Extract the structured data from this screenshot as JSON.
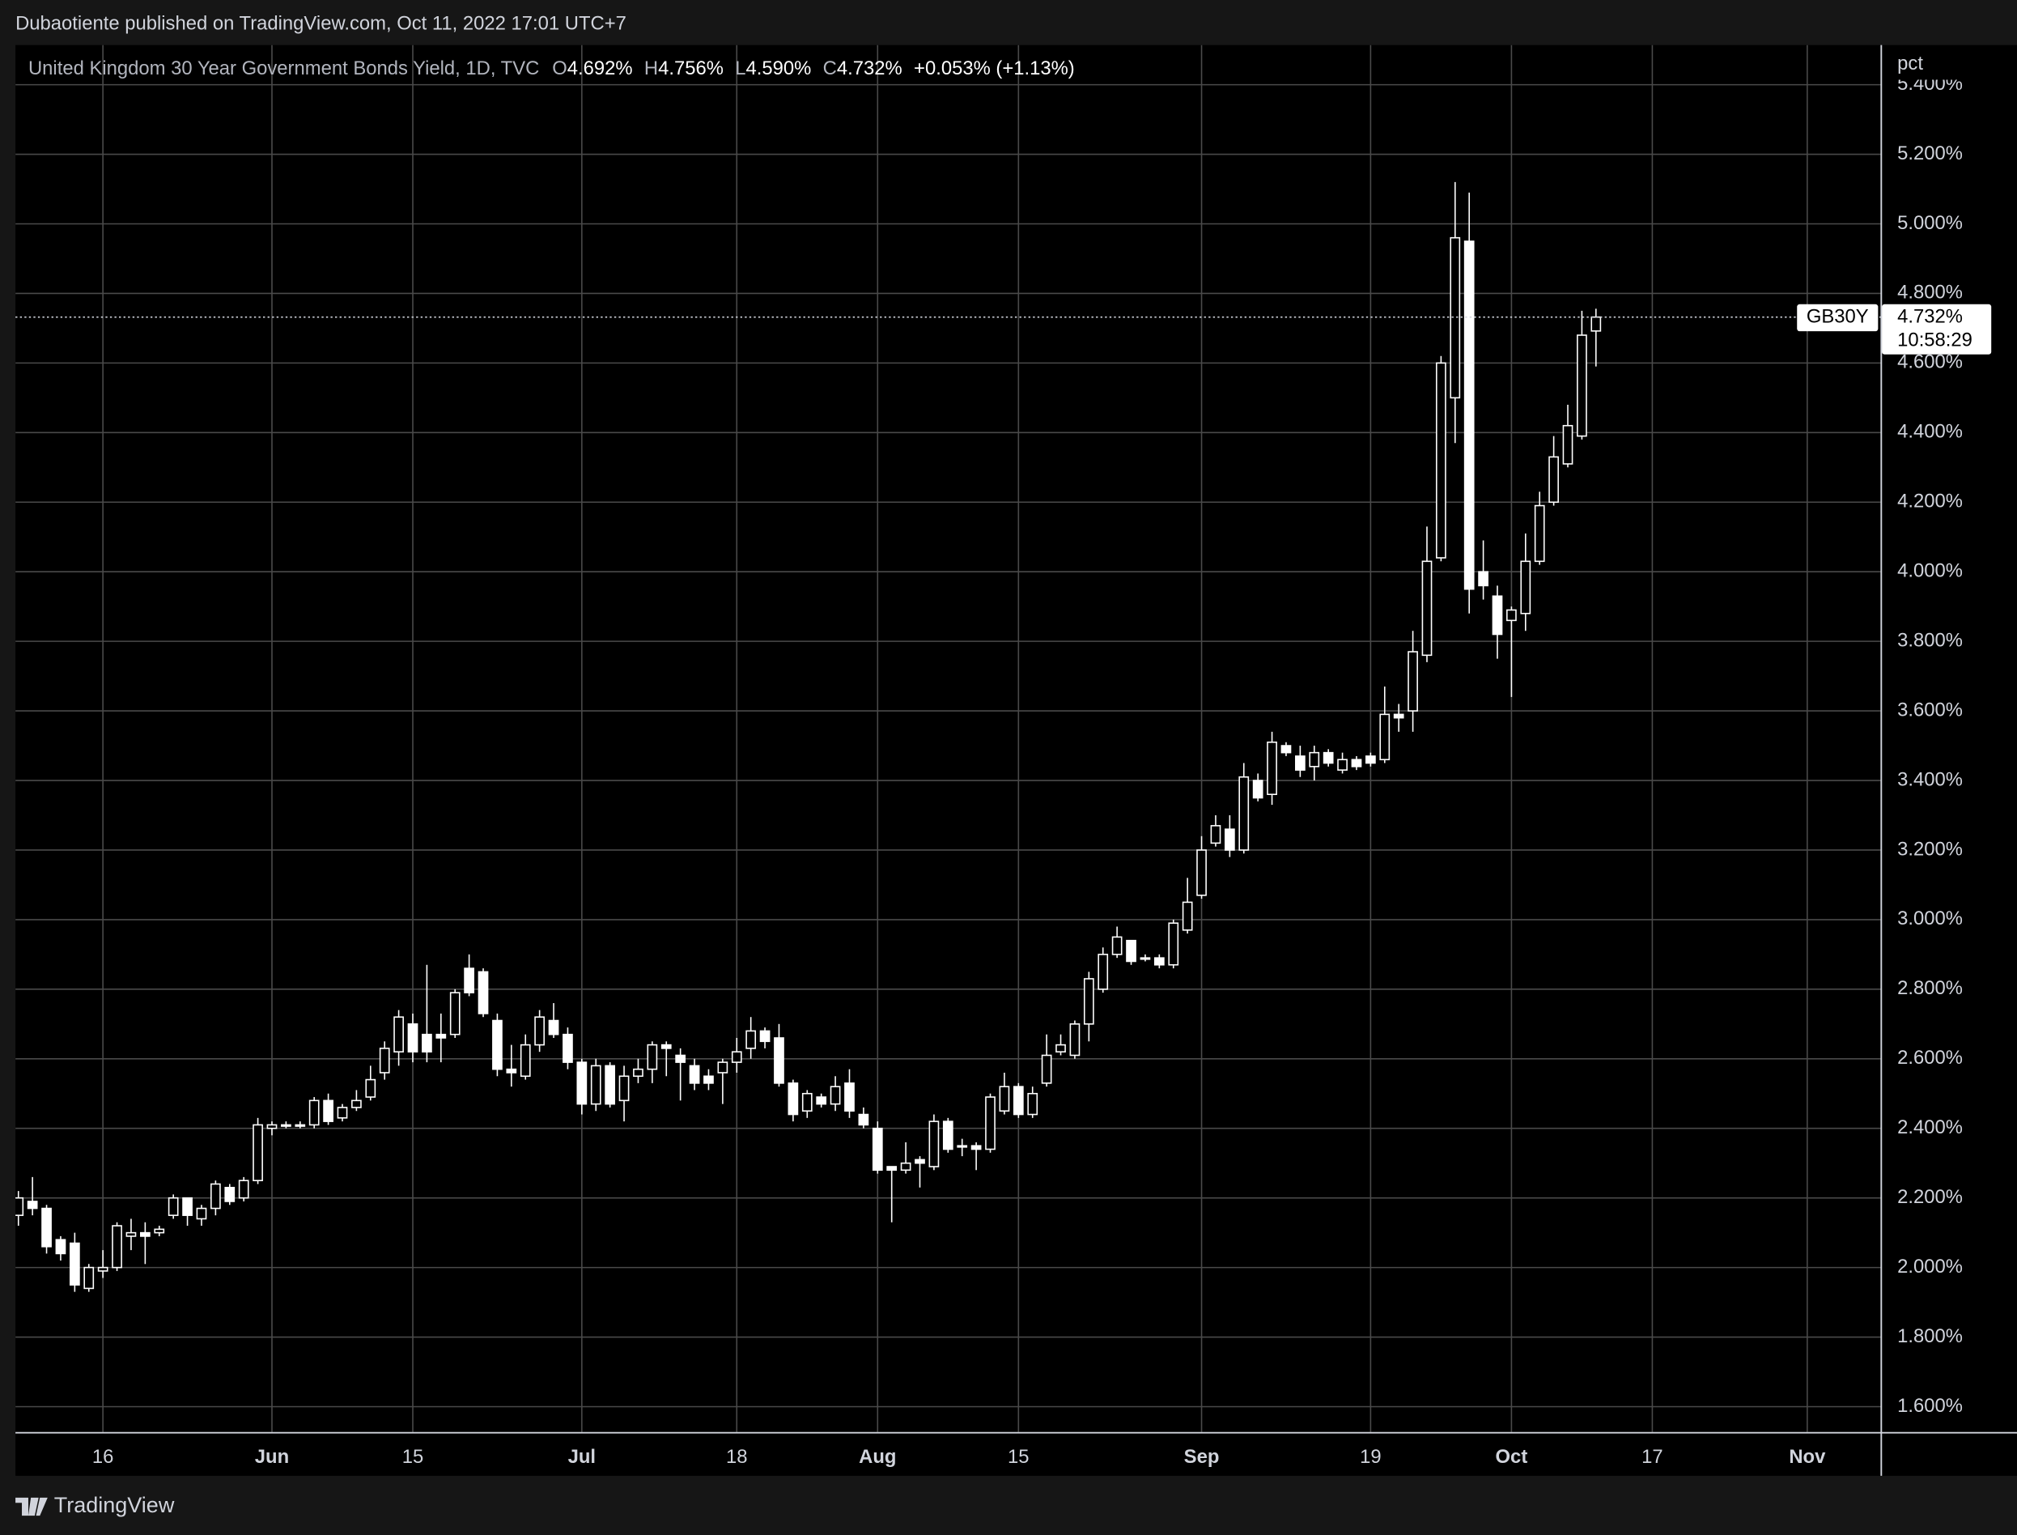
{
  "chart_data": {
    "type": "candlestick",
    "source": "Dubaotiente published on TradingView.com, Oct 11, 2022 17:01 UTC+7",
    "title": "United Kingdom 30 Year Government Bonds Yield, 1D, TVC",
    "ohlc_legend": [
      {
        "label": "O",
        "value": "4.692%"
      },
      {
        "label": "H",
        "value": "4.756%"
      },
      {
        "label": "L",
        "value": "4.590%"
      },
      {
        "label": "C",
        "value": "4.732%"
      }
    ],
    "change": "+0.053% (+1.13%)",
    "y_unit": "pct",
    "symbol": "GB30Y",
    "last_price_label": "4.732%",
    "countdown": "10:58:29",
    "branding": "TradingView",
    "color": "#ffffff",
    "background": "#000000",
    "grid": true,
    "categories": [
      null,
      null,
      null,
      null,
      null,
      null,
      "16",
      null,
      null,
      null,
      null,
      null,
      null,
      null,
      null,
      null,
      null,
      null,
      "Jun",
      null,
      null,
      null,
      null,
      null,
      null,
      null,
      null,
      null,
      "15",
      null,
      null,
      null,
      null,
      null,
      null,
      null,
      null,
      null,
      null,
      null,
      "Jul",
      null,
      null,
      null,
      null,
      null,
      null,
      null,
      null,
      null,
      null,
      "18",
      null,
      null,
      null,
      null,
      null,
      null,
      null,
      null,
      null,
      "Aug",
      null,
      null,
      null,
      null,
      null,
      null,
      null,
      null,
      null,
      "15",
      null,
      null,
      null,
      null,
      null,
      null,
      null,
      null,
      null,
      null,
      null,
      null,
      "Sep",
      null,
      null,
      null,
      null,
      null,
      null,
      null,
      null,
      null,
      null,
      null,
      "19",
      null,
      null,
      null,
      null,
      null,
      null,
      null,
      null,
      null,
      "Oct",
      null,
      null,
      null,
      null,
      null,
      null,
      null,
      null,
      null,
      "17",
      null,
      null,
      null,
      null,
      null,
      null,
      null,
      null,
      null,
      null,
      "Nov",
      null,
      null,
      null,
      null,
      null
    ],
    "open": [
      2.15,
      2.19,
      2.17,
      2.08,
      2.07,
      1.94,
      1.99,
      2.0,
      2.09,
      2.1,
      2.1,
      2.15,
      2.2,
      2.14,
      2.17,
      2.23,
      2.2,
      2.25,
      2.4,
      2.41,
      2.41,
      2.41,
      2.48,
      2.43,
      2.46,
      2.49,
      2.56,
      2.62,
      2.7,
      2.67,
      2.67,
      2.67,
      2.86,
      2.85,
      2.71,
      2.57,
      2.55,
      2.64,
      2.71,
      2.67,
      2.59,
      2.47,
      2.58,
      2.48,
      2.55,
      2.57,
      2.64,
      2.61,
      2.58,
      2.55,
      2.56,
      2.59,
      2.63,
      2.68,
      2.66,
      2.53,
      2.45,
      2.49,
      2.47,
      2.53,
      2.44,
      2.4,
      2.29,
      2.28,
      2.31,
      2.29,
      2.42,
      2.35,
      2.35,
      2.34,
      2.45,
      2.52,
      2.44,
      2.53,
      2.62,
      2.61,
      2.7,
      2.8,
      2.9,
      2.94,
      2.89,
      2.89,
      2.87,
      2.97,
      3.07,
      3.22,
      3.26,
      3.2,
      3.4,
      3.36,
      3.5,
      3.47,
      3.44,
      3.48,
      3.43,
      3.46,
      3.47,
      3.46,
      3.59,
      3.6,
      3.76,
      4.04,
      4.5,
      4.95,
      4.0,
      3.93,
      3.86,
      3.88,
      4.03,
      4.2,
      4.31,
      4.39,
      4.692,
      null,
      null,
      null,
      null,
      null,
      null,
      null,
      null,
      null,
      null,
      null,
      null,
      null,
      null,
      null,
      null,
      null,
      null,
      null,
      null
    ],
    "high": [
      2.22,
      2.26,
      2.18,
      2.09,
      2.1,
      2.01,
      2.05,
      2.13,
      2.14,
      2.13,
      2.12,
      2.21,
      2.2,
      2.18,
      2.25,
      2.24,
      2.26,
      2.43,
      2.42,
      2.42,
      2.42,
      2.49,
      2.5,
      2.47,
      2.51,
      2.58,
      2.65,
      2.74,
      2.73,
      2.87,
      2.73,
      2.8,
      2.9,
      2.86,
      2.73,
      2.64,
      2.67,
      2.74,
      2.76,
      2.69,
      2.6,
      2.6,
      2.59,
      2.58,
      2.6,
      2.65,
      2.65,
      2.63,
      2.6,
      2.57,
      2.6,
      2.66,
      2.72,
      2.69,
      2.7,
      2.54,
      2.51,
      2.5,
      2.55,
      2.57,
      2.46,
      2.42,
      2.29,
      2.36,
      2.32,
      2.44,
      2.43,
      2.37,
      2.36,
      2.5,
      2.56,
      2.53,
      2.52,
      2.67,
      2.67,
      2.71,
      2.85,
      2.92,
      2.98,
      2.94,
      2.9,
      2.9,
      3.0,
      3.12,
      3.24,
      3.3,
      3.3,
      3.45,
      3.42,
      3.54,
      3.51,
      3.5,
      3.5,
      3.49,
      3.48,
      3.47,
      3.48,
      3.67,
      3.62,
      3.83,
      4.13,
      4.62,
      5.12,
      5.09,
      4.09,
      3.96,
      3.9,
      4.11,
      4.23,
      4.39,
      4.48,
      4.75,
      4.756,
      null,
      null,
      null,
      null,
      null,
      null,
      null,
      null,
      null,
      null,
      null,
      null,
      null,
      null,
      null,
      null,
      null,
      null,
      null,
      null
    ],
    "low": [
      2.12,
      2.15,
      2.04,
      2.02,
      1.93,
      1.93,
      1.97,
      1.99,
      2.05,
      2.01,
      2.09,
      2.14,
      2.12,
      2.12,
      2.15,
      2.18,
      2.19,
      2.24,
      2.38,
      2.4,
      2.4,
      2.4,
      2.41,
      2.42,
      2.45,
      2.48,
      2.54,
      2.58,
      2.59,
      2.59,
      2.59,
      2.66,
      2.78,
      2.72,
      2.55,
      2.52,
      2.54,
      2.62,
      2.66,
      2.57,
      2.44,
      2.45,
      2.46,
      2.42,
      2.53,
      2.53,
      2.55,
      2.48,
      2.51,
      2.51,
      2.47,
      2.56,
      2.6,
      2.63,
      2.52,
      2.42,
      2.43,
      2.46,
      2.45,
      2.43,
      2.4,
      2.27,
      2.13,
      2.27,
      2.23,
      2.28,
      2.33,
      2.32,
      2.28,
      2.33,
      2.44,
      2.43,
      2.43,
      2.52,
      2.61,
      2.6,
      2.65,
      2.79,
      2.89,
      2.87,
      2.88,
      2.86,
      2.86,
      2.96,
      3.06,
      3.21,
      3.18,
      3.19,
      3.34,
      3.33,
      3.47,
      3.41,
      3.4,
      3.44,
      3.42,
      3.43,
      3.44,
      3.45,
      3.54,
      3.54,
      3.74,
      4.03,
      4.37,
      3.88,
      3.92,
      3.75,
      3.64,
      3.83,
      4.02,
      4.19,
      4.3,
      4.38,
      4.59,
      null,
      null,
      null,
      null,
      null,
      null,
      null,
      null,
      null,
      null,
      null,
      null,
      null,
      null,
      null,
      null,
      null,
      null,
      null,
      null
    ],
    "close": [
      2.2,
      2.17,
      2.06,
      2.04,
      1.95,
      2.0,
      2.0,
      2.12,
      2.1,
      2.09,
      2.11,
      2.2,
      2.15,
      2.17,
      2.24,
      2.19,
      2.25,
      2.41,
      2.41,
      2.41,
      2.41,
      2.48,
      2.42,
      2.46,
      2.48,
      2.54,
      2.63,
      2.72,
      2.62,
      2.62,
      2.66,
      2.79,
      2.79,
      2.73,
      2.57,
      2.56,
      2.64,
      2.72,
      2.67,
      2.59,
      2.47,
      2.58,
      2.47,
      2.55,
      2.57,
      2.64,
      2.63,
      2.59,
      2.53,
      2.53,
      2.59,
      2.62,
      2.68,
      2.65,
      2.53,
      2.44,
      2.5,
      2.47,
      2.52,
      2.45,
      2.41,
      2.28,
      2.28,
      2.3,
      2.3,
      2.42,
      2.34,
      2.35,
      2.34,
      2.49,
      2.52,
      2.44,
      2.5,
      2.61,
      2.64,
      2.7,
      2.83,
      2.9,
      2.95,
      2.88,
      2.89,
      2.87,
      2.99,
      3.05,
      3.2,
      3.27,
      3.2,
      3.41,
      3.35,
      3.51,
      3.48,
      3.43,
      3.48,
      3.45,
      3.46,
      3.44,
      3.45,
      3.59,
      3.58,
      3.77,
      4.03,
      4.6,
      4.96,
      3.95,
      3.96,
      3.82,
      3.89,
      4.03,
      4.19,
      4.33,
      4.42,
      4.68,
      4.732,
      null,
      null,
      null,
      null,
      null,
      null,
      null,
      null,
      null,
      null,
      null,
      null,
      null,
      null,
      null,
      null,
      null,
      null,
      null,
      null
    ],
    "ylim": [
      1.527,
      5.514
    ],
    "yticks": [
      {
        "value": 1.6,
        "label": "1.600%"
      },
      {
        "value": 1.8,
        "label": "1.800%"
      },
      {
        "value": 2.0,
        "label": "2.000%"
      },
      {
        "value": 2.2,
        "label": "2.200%"
      },
      {
        "value": 2.4,
        "label": "2.400%"
      },
      {
        "value": 2.6,
        "label": "2.600%"
      },
      {
        "value": 2.8,
        "label": "2.800%"
      },
      {
        "value": 3.0,
        "label": "3.000%"
      },
      {
        "value": 3.2,
        "label": "3.200%"
      },
      {
        "value": 3.4,
        "label": "3.400%"
      },
      {
        "value": 3.6,
        "label": "3.600%"
      },
      {
        "value": 3.8,
        "label": "3.800%"
      },
      {
        "value": 4.0,
        "label": "4.000%"
      },
      {
        "value": 4.2,
        "label": "4.200%"
      },
      {
        "value": 4.4,
        "label": "4.400%"
      },
      {
        "value": 4.6,
        "label": "4.600%"
      },
      {
        "value": 4.8,
        "label": "4.800%"
      },
      {
        "value": 5.0,
        "label": "5.000%"
      },
      {
        "value": 5.2,
        "label": "5.200%"
      },
      {
        "value": 5.4,
        "label": "5.400%"
      }
    ]
  }
}
